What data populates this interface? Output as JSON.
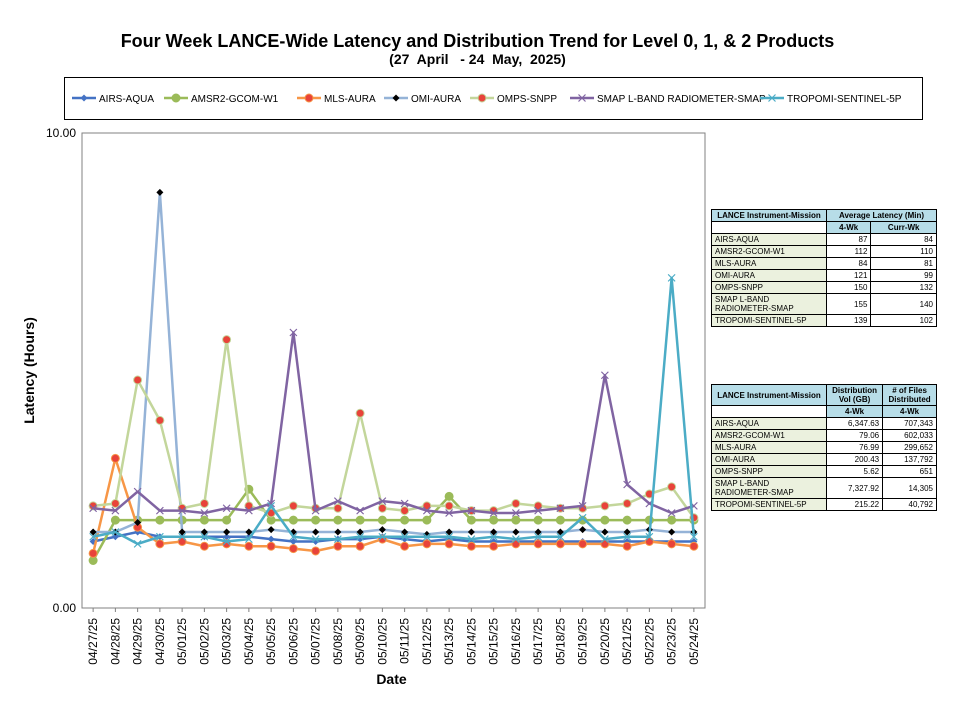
{
  "chart_data": {
    "type": "line",
    "title": "Four Week LANCE-Wide Latency and Distribution Trend for Level 0, 1, & 2 Products",
    "subtitle": "(27  April   - 24  May,  2025)",
    "xlabel": "Date",
    "ylabel": "Latency (Hours)",
    "ylim": [
      0,
      10
    ],
    "ytick_labels": [
      "10.00",
      "0.00"
    ],
    "grid": false,
    "legend_position": "top",
    "categories": [
      "04/27/25",
      "04/28/25",
      "04/29/25",
      "04/30/25",
      "05/01/25",
      "05/02/25",
      "05/03/25",
      "05/04/25",
      "05/05/25",
      "05/06/25",
      "05/07/25",
      "05/08/25",
      "05/09/25",
      "05/10/25",
      "05/11/25",
      "05/12/25",
      "05/13/25",
      "05/14/25",
      "05/15/25",
      "05/16/25",
      "05/17/25",
      "05/18/25",
      "05/19/25",
      "05/20/25",
      "05/21/25",
      "05/22/25",
      "05/23/25",
      "05/24/25"
    ],
    "series": [
      {
        "name": "AIRS-AQUA",
        "color": "#4472c4",
        "marker": "diamond",
        "values": [
          1.4,
          1.5,
          1.6,
          1.5,
          1.5,
          1.5,
          1.5,
          1.5,
          1.45,
          1.4,
          1.4,
          1.45,
          1.45,
          1.5,
          1.45,
          1.4,
          1.45,
          1.4,
          1.4,
          1.4,
          1.4,
          1.4,
          1.4,
          1.4,
          1.4,
          1.4,
          1.4,
          1.4
        ]
      },
      {
        "name": "AMSR2-GCOM-W1",
        "color": "#9bbb59",
        "marker": "circle",
        "values": [
          1.0,
          1.85,
          1.85,
          1.85,
          1.85,
          1.85,
          1.85,
          2.5,
          1.85,
          1.85,
          1.85,
          1.85,
          1.85,
          1.85,
          1.85,
          1.85,
          2.35,
          1.85,
          1.85,
          1.85,
          1.85,
          1.85,
          1.85,
          1.85,
          1.85,
          1.85,
          1.85,
          1.85
        ]
      },
      {
        "name": "MLS-AURA",
        "color": "#f79646",
        "marker": "circle",
        "values": [
          1.15,
          3.15,
          1.7,
          1.35,
          1.4,
          1.3,
          1.35,
          1.3,
          1.3,
          1.25,
          1.2,
          1.3,
          1.3,
          1.45,
          1.3,
          1.35,
          1.35,
          1.3,
          1.3,
          1.35,
          1.35,
          1.35,
          1.35,
          1.35,
          1.3,
          1.4,
          1.35,
          1.3
        ]
      },
      {
        "name": "OMI-AURA",
        "color": "#95b3d7",
        "marker": "diamond",
        "values": [
          1.6,
          1.6,
          1.8,
          8.75,
          1.6,
          1.6,
          1.6,
          1.6,
          1.65,
          1.6,
          1.6,
          1.6,
          1.6,
          1.65,
          1.6,
          1.55,
          1.6,
          1.6,
          1.6,
          1.6,
          1.6,
          1.6,
          1.65,
          1.6,
          1.6,
          1.65,
          1.6,
          1.6
        ]
      },
      {
        "name": "OMPS-SNPP",
        "color": "#c3d69b",
        "marker": "circle",
        "values": [
          2.15,
          2.2,
          4.8,
          3.95,
          2.1,
          2.2,
          5.65,
          2.15,
          2.0,
          2.15,
          2.1,
          2.1,
          4.1,
          2.1,
          2.05,
          2.15,
          2.15,
          2.05,
          2.05,
          2.2,
          2.15,
          2.1,
          2.1,
          2.15,
          2.2,
          2.4,
          2.55,
          1.9
        ]
      },
      {
        "name": "SMAP L-BAND RADIOMETER-SMAP",
        "color": "#8064a2",
        "marker": "x",
        "values": [
          2.1,
          2.05,
          2.45,
          2.05,
          2.05,
          2.0,
          2.1,
          2.05,
          2.2,
          5.8,
          2.05,
          2.25,
          2.05,
          2.25,
          2.2,
          2.05,
          2.0,
          2.05,
          2.0,
          2.0,
          2.05,
          2.1,
          2.15,
          4.9,
          2.6,
          2.2,
          2.0,
          2.15
        ]
      },
      {
        "name": "TROPOMI-SENTINEL-5P",
        "color": "#4bacc6",
        "marker": "x",
        "values": [
          1.5,
          1.6,
          1.35,
          1.5,
          1.5,
          1.5,
          1.4,
          1.45,
          2.15,
          1.5,
          1.45,
          1.45,
          1.5,
          1.5,
          1.5,
          1.5,
          1.5,
          1.45,
          1.5,
          1.45,
          1.5,
          1.5,
          1.9,
          1.45,
          1.5,
          1.5,
          6.95,
          1.5
        ]
      }
    ]
  },
  "table1": {
    "header_left": "LANCE Instrument-Mission",
    "header_right": "Average Latency (Min)",
    "sub_left": "4-Wk",
    "sub_right": "Curr-Wk",
    "rows": [
      {
        "name": "AIRS-AQUA",
        "a": "87",
        "b": "84"
      },
      {
        "name": "AMSR2-GCOM-W1",
        "a": "112",
        "b": "110"
      },
      {
        "name": "MLS-AURA",
        "a": "84",
        "b": "81"
      },
      {
        "name": "OMI-AURA",
        "a": "121",
        "b": "99"
      },
      {
        "name": "OMPS-SNPP",
        "a": "150",
        "b": "132"
      },
      {
        "name": "SMAP L-BAND RADIOMETER-SMAP",
        "a": "155",
        "b": "140"
      },
      {
        "name": "TROPOMI-SENTINEL-5P",
        "a": "139",
        "b": "102"
      }
    ]
  },
  "table2": {
    "header_left": "LANCE Instrument-Mission",
    "header_mid": "Distribution Vol (GB)",
    "header_right": "# of Files Distributed",
    "sub_left": "4-Wk",
    "sub_right": "4-Wk",
    "rows": [
      {
        "name": "AIRS-AQUA",
        "a": "6,347.63",
        "b": "707,343"
      },
      {
        "name": "AMSR2-GCOM-W1",
        "a": "79.06",
        "b": "602,033"
      },
      {
        "name": "MLS-AURA",
        "a": "76.99",
        "b": "299,652"
      },
      {
        "name": "OMI-AURA",
        "a": "200.43",
        "b": "137,792"
      },
      {
        "name": "OMPS-SNPP",
        "a": "5.62",
        "b": "651"
      },
      {
        "name": "SMAP L-BAND RADIOMETER-SMAP",
        "a": "7,327.92",
        "b": "14,305"
      },
      {
        "name": "TROPOMI-SENTINEL-5P",
        "a": "215.22",
        "b": "40,792"
      }
    ]
  }
}
